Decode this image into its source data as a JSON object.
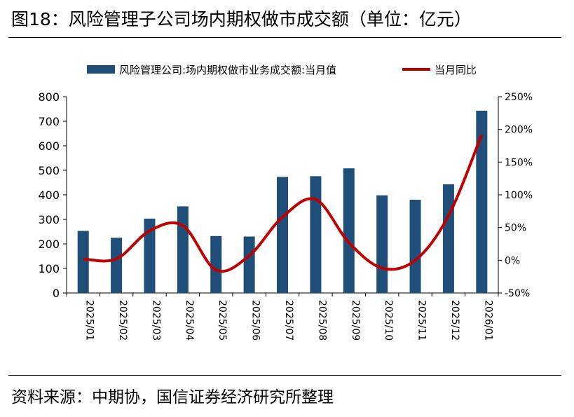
{
  "figure": {
    "title": "图18：风险管理子公司场内期权做市成交额（单位：亿元）",
    "source": "资料来源：中期协，国信证券经济研究所整理"
  },
  "colors": {
    "bar": "#1f4e79",
    "line": "#c00000",
    "axis": "#000000"
  },
  "chart_data": {
    "type": "bar+line",
    "categories": [
      "2025/01",
      "2025/02",
      "2025/03",
      "2025/04",
      "2025/05",
      "2025/06",
      "2025/07",
      "2025/08",
      "2025/09",
      "2025/10",
      "2025/11",
      "2025/12",
      "2026/01"
    ],
    "series": [
      {
        "name": "风险管理公司:场内期权做市业务成交额:当月值",
        "type": "bar",
        "axis": "left",
        "values": [
          253,
          225,
          303,
          353,
          232,
          230,
          473,
          476,
          508,
          398,
          380,
          443,
          743
        ]
      },
      {
        "name": "当月同比",
        "type": "line",
        "axis": "right",
        "unit": "%",
        "values": [
          2,
          2,
          45,
          53,
          -15,
          7,
          66,
          93,
          27,
          -12,
          0,
          68,
          192
        ]
      }
    ],
    "y_left": {
      "min": 0,
      "max": 800,
      "ticks": [
        "0",
        "100",
        "200",
        "300",
        "400",
        "500",
        "600",
        "700",
        "800"
      ]
    },
    "y_right": {
      "min": -50,
      "max": 250,
      "ticks": [
        "-50%",
        "0%",
        "50%",
        "100%",
        "150%",
        "200%",
        "250%"
      ]
    },
    "legend_position": "top",
    "grid": false
  }
}
